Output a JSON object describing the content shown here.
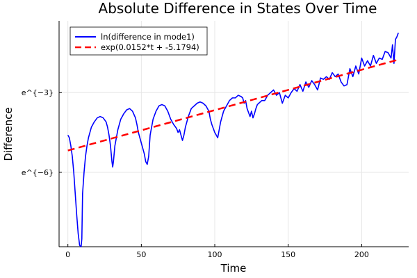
{
  "chart_data": {
    "type": "line",
    "title": "Absolute Difference in States Over Time",
    "xlabel": "Time",
    "ylabel": "Difference",
    "xlim": [
      -6,
      232
    ],
    "ylim": [
      -8.8,
      -0.3
    ],
    "y_scale": "natural log (tick labels are powers of e)",
    "grid": true,
    "legend_position": "top-left",
    "x_ticks": [
      0,
      50,
      100,
      150,
      200
    ],
    "y_ticks": [
      {
        "value": -3,
        "label": "e^{−3}"
      },
      {
        "value": -6,
        "label": "e^{−6}"
      }
    ],
    "series": [
      {
        "name": "ln(difference in mode1)",
        "color": "#0000ff",
        "style": "solid",
        "x": [
          0,
          1,
          2,
          3,
          4,
          5,
          6,
          7,
          8,
          9,
          9.5,
          10,
          11,
          12,
          13,
          14,
          15,
          16,
          18,
          20,
          22,
          24,
          26,
          27,
          28,
          29,
          30,
          30.5,
          31,
          32,
          34,
          36,
          38,
          40,
          42,
          44,
          46,
          47,
          48,
          49,
          50,
          51,
          52,
          53,
          54,
          55,
          56,
          58,
          60,
          62,
          64,
          66,
          68,
          70,
          72,
          74,
          75,
          76,
          77,
          78,
          79,
          80,
          82,
          84,
          86,
          88,
          90,
          92,
          94,
          96,
          97,
          98,
          100,
          101,
          102,
          103,
          104,
          105,
          106,
          108,
          110,
          112,
          114,
          116,
          118,
          119,
          120,
          121,
          122,
          124,
          125,
          126,
          127,
          128,
          129,
          130,
          132,
          134,
          136,
          138,
          140,
          142,
          144,
          146,
          148,
          150,
          152,
          154,
          156,
          158,
          160,
          162,
          164,
          166,
          168,
          170,
          172,
          174,
          176,
          178,
          180,
          182,
          184,
          186,
          188,
          190,
          192,
          194,
          196,
          198,
          200,
          202,
          204,
          206,
          208,
          210,
          212,
          214,
          216,
          218,
          220,
          221,
          222,
          223,
          224,
          225
        ],
        "y": [
          -4.6,
          -4.7,
          -5.0,
          -5.4,
          -6.0,
          -6.8,
          -7.6,
          -8.3,
          -8.75,
          -8.8,
          -8.5,
          -6.8,
          -6.0,
          -5.4,
          -5.0,
          -4.7,
          -4.5,
          -4.3,
          -4.1,
          -3.95,
          -3.9,
          -3.95,
          -4.1,
          -4.3,
          -4.6,
          -5.0,
          -5.6,
          -5.8,
          -5.6,
          -5.0,
          -4.4,
          -4.0,
          -3.8,
          -3.65,
          -3.6,
          -3.7,
          -3.95,
          -4.2,
          -4.5,
          -4.7,
          -4.9,
          -5.1,
          -5.3,
          -5.6,
          -5.7,
          -5.4,
          -4.6,
          -4.0,
          -3.7,
          -3.5,
          -3.45,
          -3.5,
          -3.7,
          -4.0,
          -4.2,
          -4.35,
          -4.5,
          -4.4,
          -4.6,
          -4.8,
          -4.6,
          -4.3,
          -3.9,
          -3.6,
          -3.5,
          -3.4,
          -3.35,
          -3.4,
          -3.5,
          -3.7,
          -4.0,
          -4.2,
          -4.5,
          -4.6,
          -4.7,
          -4.4,
          -4.1,
          -3.9,
          -3.7,
          -3.5,
          -3.3,
          -3.2,
          -3.2,
          -3.1,
          -3.15,
          -3.2,
          -3.4,
          -3.3,
          -3.6,
          -3.9,
          -3.7,
          -3.95,
          -3.8,
          -3.6,
          -3.45,
          -3.4,
          -3.3,
          -3.3,
          -3.1,
          -3.0,
          -2.9,
          -3.1,
          -3.0,
          -3.4,
          -3.1,
          -3.2,
          -3.0,
          -2.85,
          -2.95,
          -2.7,
          -2.95,
          -2.6,
          -2.8,
          -2.55,
          -2.7,
          -2.9,
          -2.45,
          -2.5,
          -2.4,
          -2.5,
          -2.25,
          -2.4,
          -2.3,
          -2.6,
          -2.75,
          -2.7,
          -2.1,
          -2.4,
          -2.0,
          -2.3,
          -1.7,
          -2.0,
          -1.8,
          -2.0,
          -1.6,
          -1.9,
          -1.7,
          -1.75,
          -1.45,
          -1.5,
          -1.7,
          -1.2,
          -1.9,
          -1.0,
          -0.9,
          -0.75
        ]
      },
      {
        "name": "exp(0.0152*t + -5.1794)",
        "color": "#ff0000",
        "style": "dashed",
        "x": [
          0,
          225
        ],
        "y": [
          -5.1794,
          -1.7594
        ]
      }
    ]
  }
}
